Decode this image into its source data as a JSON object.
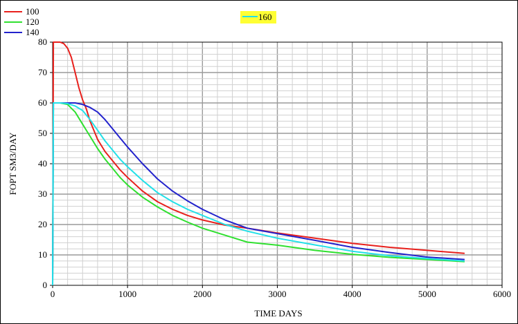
{
  "chart_data": {
    "type": "line",
    "title": "",
    "xlabel": "TIME DAYS",
    "ylabel": "FOPT SM3/DAY",
    "xlim": [
      0,
      6000
    ],
    "ylim": [
      0,
      80
    ],
    "x_ticks": [
      "0",
      "1000",
      "2000",
      "3000",
      "4000",
      "5000",
      "6000"
    ],
    "y_ticks": [
      "0",
      "10",
      "20",
      "30",
      "40",
      "50",
      "60",
      "70",
      "80"
    ],
    "grid": true,
    "legend_position": "top-left",
    "series": [
      {
        "name": "100",
        "color": "#e8201c",
        "x": [
          0,
          10,
          30,
          100,
          150,
          200,
          250,
          300,
          350,
          400,
          450,
          500,
          550,
          600,
          650,
          700,
          800,
          900,
          1000,
          1200,
          1400,
          1600,
          1800,
          2000,
          2300,
          2600,
          3000,
          3500,
          4000,
          4500,
          5000,
          5500
        ],
        "y": [
          0,
          80,
          80,
          80,
          79.5,
          78,
          75,
          70,
          65,
          61,
          58,
          54,
          51,
          48,
          46,
          44,
          41,
          38,
          35.5,
          31,
          27.5,
          25,
          23,
          21.5,
          19.8,
          18.8,
          17.2,
          15.5,
          13.8,
          12.5,
          11.5,
          10.5
        ]
      },
      {
        "name": "120",
        "color": "#2fe02f",
        "x": [
          0,
          10,
          30,
          100,
          200,
          300,
          400,
          500,
          600,
          700,
          800,
          900,
          1000,
          1200,
          1400,
          1600,
          1800,
          2000,
          2300,
          2600,
          3000,
          3500,
          4000,
          4500,
          5000,
          5500
        ],
        "y": [
          0,
          60,
          60,
          60,
          59.5,
          57,
          53,
          49,
          45,
          41.5,
          38.5,
          35.5,
          33,
          29,
          25.8,
          23,
          20.8,
          18.8,
          16.5,
          14.2,
          13.2,
          11.5,
          10.2,
          9.2,
          8.5,
          7.8
        ]
      },
      {
        "name": "140",
        "color": "#2222cc",
        "x": [
          0,
          10,
          30,
          100,
          300,
          400,
          500,
          600,
          700,
          800,
          900,
          1000,
          1200,
          1400,
          1600,
          1800,
          2000,
          2300,
          2600,
          3000,
          3500,
          4000,
          4500,
          5000,
          5500
        ],
        "y": [
          0,
          60,
          60,
          60,
          60,
          59.5,
          58.5,
          57,
          54.5,
          51.5,
          48.5,
          45.5,
          40,
          35,
          31,
          27.8,
          25,
          21.5,
          18.8,
          17,
          14.8,
          12.5,
          10.8,
          9.3,
          8.5
        ]
      },
      {
        "name": "160",
        "color": "#22e0e8",
        "x": [
          0,
          10,
          30,
          100,
          200,
          300,
          400,
          500,
          600,
          700,
          800,
          900,
          1000,
          1200,
          1400,
          1600,
          1800,
          2000,
          2300,
          2600,
          3000,
          3500,
          4000,
          4500,
          5000,
          5500
        ],
        "y": [
          0,
          60,
          60,
          60,
          59.8,
          59,
          57.5,
          54.5,
          51,
          47.5,
          44.5,
          41.5,
          39,
          34.5,
          30.5,
          27.5,
          25,
          23,
          20,
          17.8,
          15.5,
          13.3,
          11.2,
          9.7,
          8.8,
          8.0
        ]
      }
    ]
  }
}
